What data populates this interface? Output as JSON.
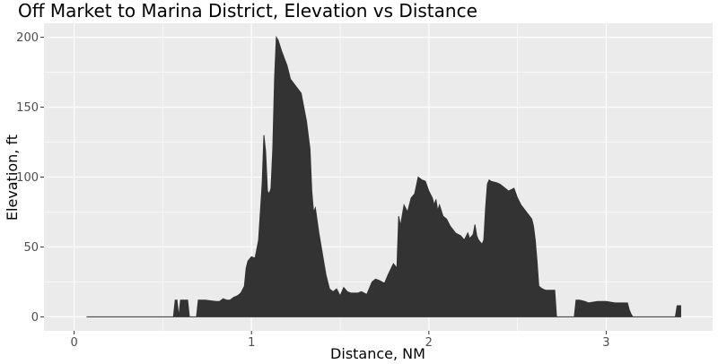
{
  "chart_data": {
    "type": "area",
    "title": "Off Market to Marina District, Elevation vs Distance",
    "xlabel": "Distance, NM",
    "ylabel": "Elevation, ft",
    "xlim": [
      -0.17,
      3.6
    ],
    "ylim": [
      -10,
      210
    ],
    "x_ticks": [
      0,
      1,
      2,
      3
    ],
    "y_ticks": [
      0,
      50,
      100,
      150,
      200
    ],
    "x_tick_labels": [
      "0",
      "1",
      "2",
      "3"
    ],
    "y_tick_labels": [
      "0",
      "50",
      "100",
      "150",
      "200"
    ],
    "grid": true,
    "panel_background": "#ebebeb",
    "grid_color": "#ffffff",
    "fill_color": "#333333",
    "series": [
      {
        "x": [
          0.07,
          0.55,
          0.56,
          0.57,
          0.58,
          0.59,
          0.6,
          0.64,
          0.65,
          0.69,
          0.7,
          0.72,
          0.74,
          0.8,
          0.82,
          0.84,
          0.86,
          0.88,
          0.9,
          0.92,
          0.94,
          0.96,
          0.97,
          0.98,
          1.0,
          1.02,
          1.04,
          1.06,
          1.07,
          1.08,
          1.09,
          1.1,
          1.11,
          1.12,
          1.13,
          1.14,
          1.15,
          1.17,
          1.2,
          1.22,
          1.25,
          1.28,
          1.31,
          1.33,
          1.34,
          1.35,
          1.36,
          1.38,
          1.4,
          1.42,
          1.44,
          1.46,
          1.48,
          1.5,
          1.52,
          1.54,
          1.56,
          1.58,
          1.6,
          1.62,
          1.65,
          1.68,
          1.7,
          1.72,
          1.75,
          1.77,
          1.8,
          1.82,
          1.83,
          1.84,
          1.86,
          1.88,
          1.9,
          1.92,
          1.94,
          1.96,
          1.98,
          2.0,
          2.02,
          2.03,
          2.04,
          2.05,
          2.06,
          2.08,
          2.1,
          2.12,
          2.15,
          2.18,
          2.2,
          2.22,
          2.23,
          2.25,
          2.26,
          2.27,
          2.28,
          2.3,
          2.31,
          2.32,
          2.33,
          2.34,
          2.35,
          2.38,
          2.4,
          2.42,
          2.45,
          2.48,
          2.5,
          2.52,
          2.55,
          2.58,
          2.59,
          2.6,
          2.61,
          2.62,
          2.64,
          2.66,
          2.7,
          2.71,
          2.72,
          2.82,
          2.83,
          2.85,
          2.88,
          2.9,
          2.95,
          3.0,
          3.05,
          3.1,
          3.12,
          3.13,
          3.14,
          3.15,
          3.39,
          3.4,
          3.41,
          3.42
        ],
        "y": [
          0,
          0,
          0,
          12,
          12,
          0,
          12,
          12,
          0,
          0,
          12,
          12,
          12,
          11,
          11,
          13,
          12,
          12,
          14,
          15,
          17,
          22,
          35,
          40,
          43,
          42,
          55,
          95,
          130,
          118,
          90,
          88,
          92,
          120,
          170,
          200,
          198,
          190,
          180,
          170,
          165,
          160,
          140,
          120,
          90,
          75,
          78,
          60,
          45,
          30,
          20,
          18,
          20,
          15,
          21,
          18,
          17,
          17,
          17,
          18,
          16,
          25,
          27,
          26,
          24,
          30,
          38,
          35,
          72,
          65,
          80,
          75,
          85,
          88,
          100,
          98,
          97,
          90,
          85,
          80,
          84,
          76,
          80,
          72,
          70,
          65,
          60,
          58,
          55,
          60,
          56,
          59,
          66,
          58,
          55,
          52,
          55,
          78,
          95,
          98,
          97,
          96,
          95,
          93,
          90,
          92,
          85,
          80,
          75,
          70,
          65,
          55,
          40,
          22,
          20,
          19,
          19,
          19,
          0,
          0,
          12,
          12,
          11,
          10,
          11,
          11,
          10,
          10,
          10,
          5,
          2,
          0,
          0,
          8,
          8,
          8
        ]
      }
    ]
  }
}
